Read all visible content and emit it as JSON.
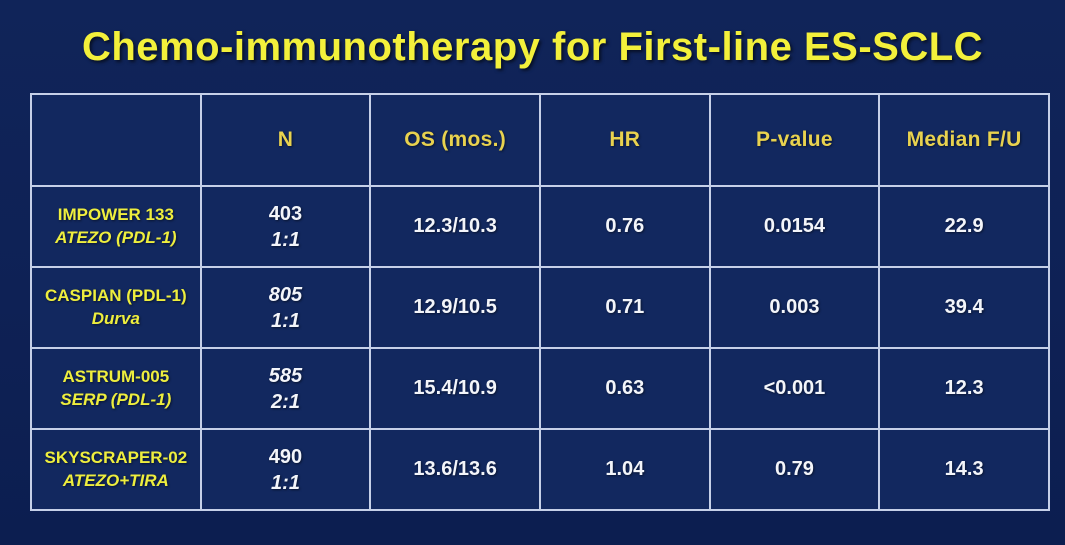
{
  "slide": {
    "title": "Chemo-immunotherapy for First-line ES-SCLC"
  },
  "colors": {
    "background_navy": "#0e2155",
    "cell_background": "#12285f",
    "grid_border": "#c6d0e8",
    "title_yellow": "#f3f03b",
    "header_gold": "#e8d24f",
    "study_label_yellow": "#eeee3e",
    "value_white": "#f3f5fa"
  },
  "table": {
    "columns": [
      "",
      "N",
      "OS (mos.)",
      "HR",
      "P-value",
      "Median F/U"
    ],
    "rows": [
      {
        "study": "IMPOWER 133",
        "agent": "ATEZO (PDL-1)",
        "n": "403",
        "randomization": "1:1",
        "n_italic": false,
        "os": "12.3/10.3",
        "hr": "0.76",
        "p_value": "0.0154",
        "median_fu": "22.9"
      },
      {
        "study": "CASPIAN (PDL-1)",
        "agent": "Durva",
        "n": "805",
        "randomization": "1:1",
        "n_italic": true,
        "os": "12.9/10.5",
        "hr": "0.71",
        "p_value": "0.003",
        "median_fu": "39.4"
      },
      {
        "study": "ASTRUM-005",
        "agent": "SERP (PDL-1)",
        "n": "585",
        "randomization": "2:1",
        "n_italic": true,
        "os": "15.4/10.9",
        "hr": "0.63",
        "p_value": "<0.001",
        "median_fu": "12.3"
      },
      {
        "study": "SKYSCRAPER-02",
        "agent": "ATEZO+TIRA",
        "n": "490",
        "randomization": "1:1",
        "n_italic": false,
        "os": "13.6/13.6",
        "hr": "1.04",
        "p_value": "0.79",
        "median_fu": "14.3"
      }
    ]
  }
}
